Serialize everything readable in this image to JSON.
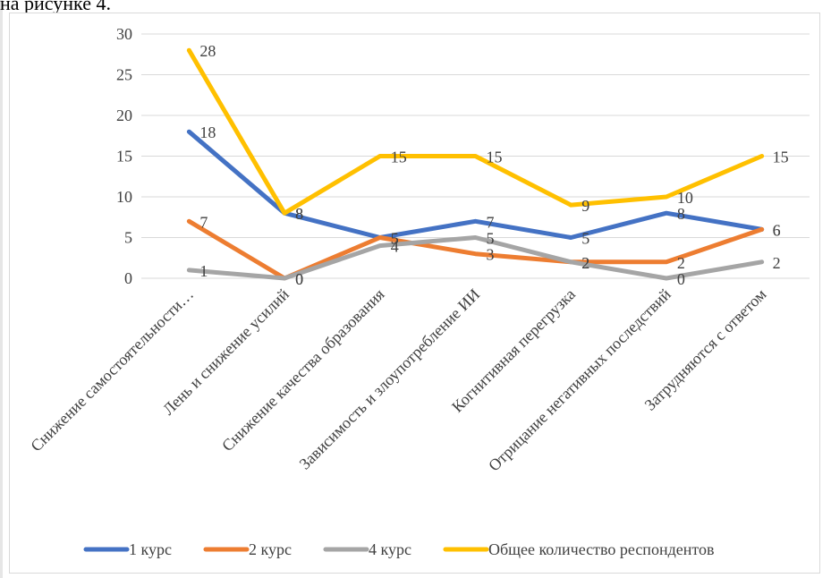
{
  "page": {
    "top_text": "на рисунке 4."
  },
  "chart_data": {
    "type": "line",
    "categories": [
      "Снижение самостоятельности…",
      "Лень и снижение усилий",
      "Снижение качества образования",
      "Зависимость и злоупотребление ИИ",
      "Когнитивная перегрузка",
      "Отрицание негативных последствий",
      "Затрудняются с ответом"
    ],
    "series": [
      {
        "name": "1 курс",
        "color": "#4472c4",
        "values": [
          18,
          8,
          5,
          7,
          5,
          8,
          6
        ]
      },
      {
        "name": "2 курс",
        "color": "#ed7d31",
        "values": [
          7,
          0,
          5,
          3,
          2,
          2,
          6
        ]
      },
      {
        "name": "4 курс",
        "color": "#a5a5a5",
        "values": [
          1,
          0,
          4,
          5,
          2,
          0,
          2
        ]
      },
      {
        "name": "Общее количество респондентов",
        "color": "#ffc000",
        "values": [
          28,
          8,
          15,
          15,
          9,
          10,
          15
        ]
      }
    ],
    "data_labels": [
      [
        "18",
        "8",
        "5",
        "7",
        "5",
        "8",
        "6"
      ],
      [
        "7",
        "0",
        "5",
        "3",
        "2",
        "2",
        "6"
      ],
      [
        "1",
        "0",
        "4",
        "5",
        "2",
        "0",
        "2"
      ],
      [
        "28",
        "8",
        "15",
        "15",
        "9",
        "10",
        "15"
      ]
    ],
    "ylim": [
      0,
      30
    ],
    "yticks": [
      "0",
      "5",
      "10",
      "15",
      "20",
      "25",
      "30"
    ],
    "grid": true,
    "legend_position": "bottom"
  }
}
